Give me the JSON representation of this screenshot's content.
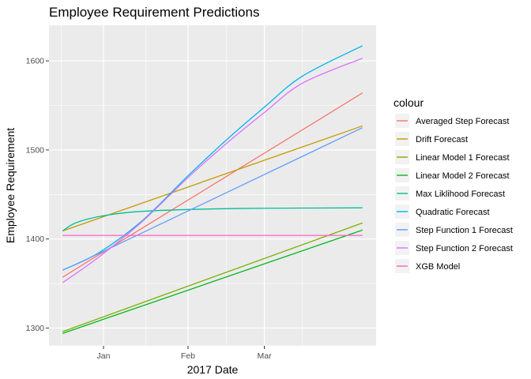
{
  "chart_data": {
    "type": "line",
    "title": "Employee Requirement Predictions",
    "xlabel": "2017 Date",
    "ylabel": "Employee Requirement",
    "x_type": "date",
    "xlim": [
      "2016-12-12",
      "2017-04-11"
    ],
    "ylim": [
      1280,
      1640
    ],
    "x_ticks": [
      {
        "date": "2017-01-01",
        "label": "Jan"
      },
      {
        "date": "2017-02-01",
        "label": "Feb"
      },
      {
        "date": "2017-03-01",
        "label": "Mar"
      }
    ],
    "y_ticks": [
      1300,
      1400,
      1500,
      1600
    ],
    "grid": true,
    "legend": {
      "title": "colour",
      "placement": "right"
    },
    "series": [
      {
        "name": "Averaged Step Forecast",
        "color": "#F8766D",
        "points": [
          [
            "2016-12-17",
            1357
          ],
          [
            "2017-01-05",
            1393
          ],
          [
            "2017-04-06",
            1564
          ]
        ]
      },
      {
        "name": "Drift Forecast",
        "color": "#C49A00",
        "points": [
          [
            "2016-12-17",
            1409
          ],
          [
            "2017-04-06",
            1527
          ]
        ]
      },
      {
        "name": "Linear Model 1 Forecast",
        "color": "#7CAE00",
        "points": [
          [
            "2016-12-17",
            1296
          ],
          [
            "2017-04-06",
            1418
          ]
        ]
      },
      {
        "name": "Linear Model 2 Forecast",
        "color": "#00B81F",
        "points": [
          [
            "2016-12-17",
            1294
          ],
          [
            "2017-04-06",
            1410
          ]
        ]
      },
      {
        "name": "Max Liklihood Forecast",
        "color": "#00BE9A",
        "points": [
          [
            "2016-12-17",
            1409
          ],
          [
            "2016-12-21",
            1417
          ],
          [
            "2016-12-27",
            1423
          ],
          [
            "2017-01-05",
            1428
          ],
          [
            "2017-01-15",
            1431
          ],
          [
            "2017-01-31",
            1433
          ],
          [
            "2017-02-15",
            1434
          ],
          [
            "2017-03-01",
            1434.5
          ],
          [
            "2017-04-06",
            1435
          ]
        ]
      },
      {
        "name": "Quadratic Forecast",
        "color": "#00B5EE",
        "points": [
          [
            "2016-12-17",
            1365
          ],
          [
            "2016-12-30",
            1384
          ],
          [
            "2017-01-15",
            1420
          ],
          [
            "2017-02-01",
            1471
          ],
          [
            "2017-02-15",
            1511
          ],
          [
            "2017-03-01",
            1548
          ],
          [
            "2017-03-15",
            1583
          ],
          [
            "2017-04-06",
            1617
          ]
        ]
      },
      {
        "name": "Step Function 1 Forecast",
        "color": "#619CFF",
        "points": [
          [
            "2016-12-17",
            1365
          ],
          [
            "2017-01-05",
            1392
          ],
          [
            "2017-04-06",
            1525
          ]
        ]
      },
      {
        "name": "Step Function 2 Forecast",
        "color": "#DB72FB",
        "points": [
          [
            "2016-12-17",
            1351
          ],
          [
            "2016-12-30",
            1379
          ],
          [
            "2017-01-15",
            1419
          ],
          [
            "2017-02-01",
            1469
          ],
          [
            "2017-02-15",
            1507
          ],
          [
            "2017-03-01",
            1542
          ],
          [
            "2017-03-15",
            1575
          ],
          [
            "2017-04-06",
            1603
          ]
        ]
      },
      {
        "name": "XGB Model",
        "color": "#FF61C3",
        "points": [
          [
            "2016-12-17",
            1404
          ],
          [
            "2017-04-06",
            1404
          ]
        ]
      }
    ]
  }
}
